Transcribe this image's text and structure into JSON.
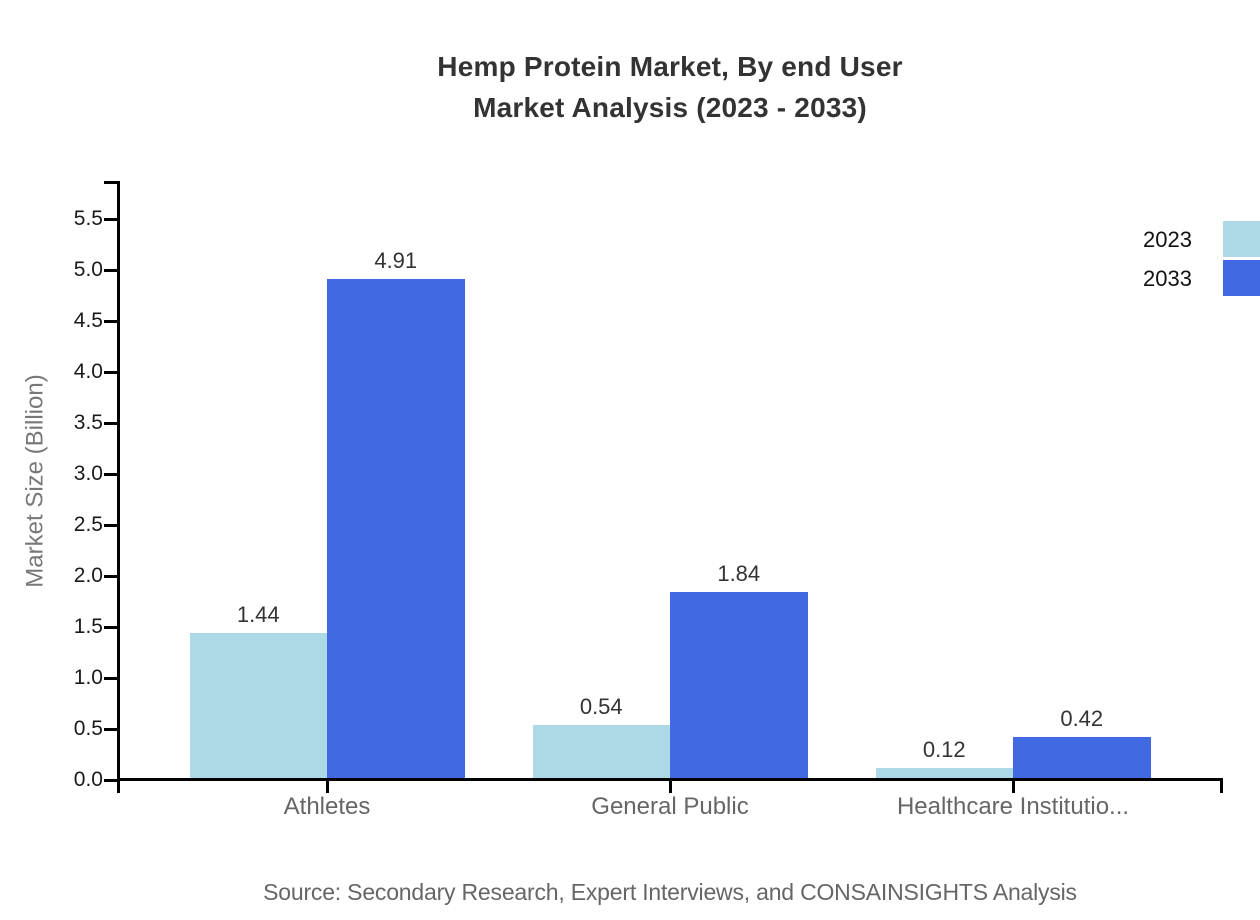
{
  "title": {
    "line1": "Hemp Protein Market, By end User",
    "line2": "Market Analysis (2023 - 2033)"
  },
  "source": "Source: Secondary Research, Expert Interviews, and CONSAINSIGHTS Analysis",
  "chart_data": {
    "type": "bar",
    "title": "Hemp Protein Market, By end User Market Analysis (2023 - 2033)",
    "categories": [
      "Athletes",
      "General Public",
      "Healthcare Institutio..."
    ],
    "series": [
      {
        "name": "2023",
        "color": "#ADD8E6",
        "values": [
          1.44,
          0.54,
          0.12
        ]
      },
      {
        "name": "2033",
        "color": "#4169E1",
        "values": [
          4.91,
          1.84,
          0.42
        ]
      }
    ],
    "xlabel": "",
    "ylabel": "Market Size (Billion)",
    "ylim": [
      0,
      5.87
    ],
    "yticks": [
      "0.0",
      "0.5",
      "1.0",
      "1.5",
      "2.0",
      "2.5",
      "3.0",
      "3.5",
      "4.0",
      "4.5",
      "5.0",
      "5.5"
    ],
    "grid": false,
    "legend_position": "top-right",
    "bar_value_labels": [
      "1.44",
      "0.54",
      "0.12",
      "4.91",
      "1.84",
      "0.42"
    ],
    "axis_color": "#000000",
    "value_label_color": "#333333",
    "category_label_color": "#666666"
  }
}
